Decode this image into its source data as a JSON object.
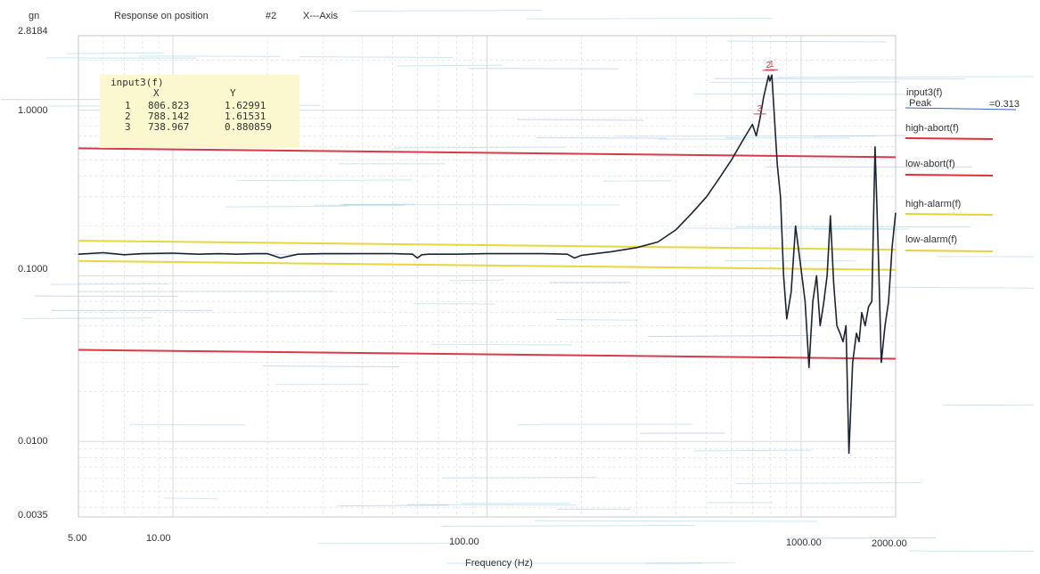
{
  "header": {
    "unit": "gn",
    "title": "Response on position",
    "position": "#2",
    "axis": "X---Axis"
  },
  "cursor_table": {
    "title": "input3(f)",
    "col_x": "X",
    "col_y": "Y",
    "rows": [
      {
        "n": "1",
        "x": "806.823",
        "y": "1.62991"
      },
      {
        "n": "2",
        "x": "788.142",
        "y": "1.61531"
      },
      {
        "n": "3",
        "x": "738.967",
        "y": "0.880859"
      }
    ]
  },
  "legend": {
    "series": "input3(f)",
    "peak_label": "Peak",
    "peak_value": "=0.313",
    "items": [
      {
        "label": "high-abort(f)",
        "color": "#e0303a"
      },
      {
        "label": "low-abort(f)",
        "color": "#e0303a"
      },
      {
        "label": "high-alarm(f)",
        "color": "#e6d23a"
      },
      {
        "label": "low-alarm(f)",
        "color": "#e6d23a"
      }
    ]
  },
  "colors": {
    "trace": "#1d2430",
    "abort": "#d93a4a",
    "alarm": "#e8d640",
    "grid": "#dadada",
    "scan_cyan": "#7cc4e0",
    "scan_blue": "#3a62c8",
    "marker": "#d44050"
  },
  "chart_data": {
    "type": "line",
    "title": "Response on position #2 X---Axis",
    "xlabel": "Frequency (Hz)",
    "ylabel": "gn",
    "x_scale": "log",
    "y_scale": "log",
    "xlim": [
      5,
      2000
    ],
    "ylim": [
      0.0035,
      2.8184
    ],
    "x_ticks": [
      "5.00",
      "10.00",
      "100.00",
      "1000.00",
      "2000.00"
    ],
    "x_tick_values": [
      5,
      10,
      100,
      1000,
      2000
    ],
    "y_ticks": [
      "2.8184",
      "1.0000",
      "0.1000",
      "0.0100",
      "0.0035"
    ],
    "y_tick_values": [
      2.8184,
      1.0,
      0.1,
      0.01,
      0.0035
    ],
    "series": [
      {
        "name": "input3(f)",
        "x": [
          5,
          6,
          7,
          8,
          10,
          12,
          14,
          16,
          18,
          20,
          22,
          25,
          30,
          40,
          50,
          58,
          60,
          62,
          65,
          70,
          80,
          100,
          120,
          150,
          180,
          190,
          200,
          250,
          300,
          350,
          400,
          450,
          500,
          550,
          600,
          650,
          700,
          720,
          739,
          760,
          788,
          795,
          807,
          820,
          840,
          860,
          880,
          900,
          930,
          960,
          1000,
          1030,
          1060,
          1090,
          1120,
          1150,
          1180,
          1210,
          1240,
          1270,
          1300,
          1330,
          1360,
          1390,
          1420,
          1460,
          1500,
          1530,
          1560,
          1600,
          1640,
          1680,
          1720,
          1760,
          1800,
          1850,
          1900,
          1950,
          2000
        ],
        "y": [
          0.135,
          0.138,
          0.134,
          0.136,
          0.137,
          0.135,
          0.136,
          0.135,
          0.136,
          0.136,
          0.128,
          0.135,
          0.136,
          0.136,
          0.136,
          0.135,
          0.128,
          0.134,
          0.135,
          0.135,
          0.135,
          0.136,
          0.136,
          0.136,
          0.135,
          0.128,
          0.133,
          0.14,
          0.148,
          0.16,
          0.19,
          0.24,
          0.3,
          0.39,
          0.5,
          0.65,
          0.82,
          0.7,
          0.88,
          1.2,
          1.615,
          1.5,
          1.63,
          1.0,
          0.47,
          0.3,
          0.1,
          0.055,
          0.08,
          0.2,
          0.11,
          0.07,
          0.028,
          0.07,
          0.1,
          0.05,
          0.068,
          0.1,
          0.23,
          0.09,
          0.05,
          0.045,
          0.04,
          0.05,
          0.0085,
          0.03,
          0.045,
          0.04,
          0.06,
          0.05,
          0.065,
          0.07,
          0.6,
          0.15,
          0.03,
          0.05,
          0.07,
          0.15,
          0.24
        ]
      }
    ],
    "thresholds": [
      {
        "name": "high-abort(f)",
        "y": 0.56
      },
      {
        "name": "low-abort(f)",
        "y": 0.034
      },
      {
        "name": "high-alarm(f)",
        "y": 0.155
      },
      {
        "name": "low-alarm(f)",
        "y": 0.117
      }
    ],
    "markers": [
      {
        "label": "1",
        "x": 806.823,
        "y": 1.62991
      },
      {
        "label": "2",
        "x": 788.142,
        "y": 1.61531
      },
      {
        "label": "3",
        "x": 738.967,
        "y": 0.880859
      }
    ],
    "grid": true
  }
}
